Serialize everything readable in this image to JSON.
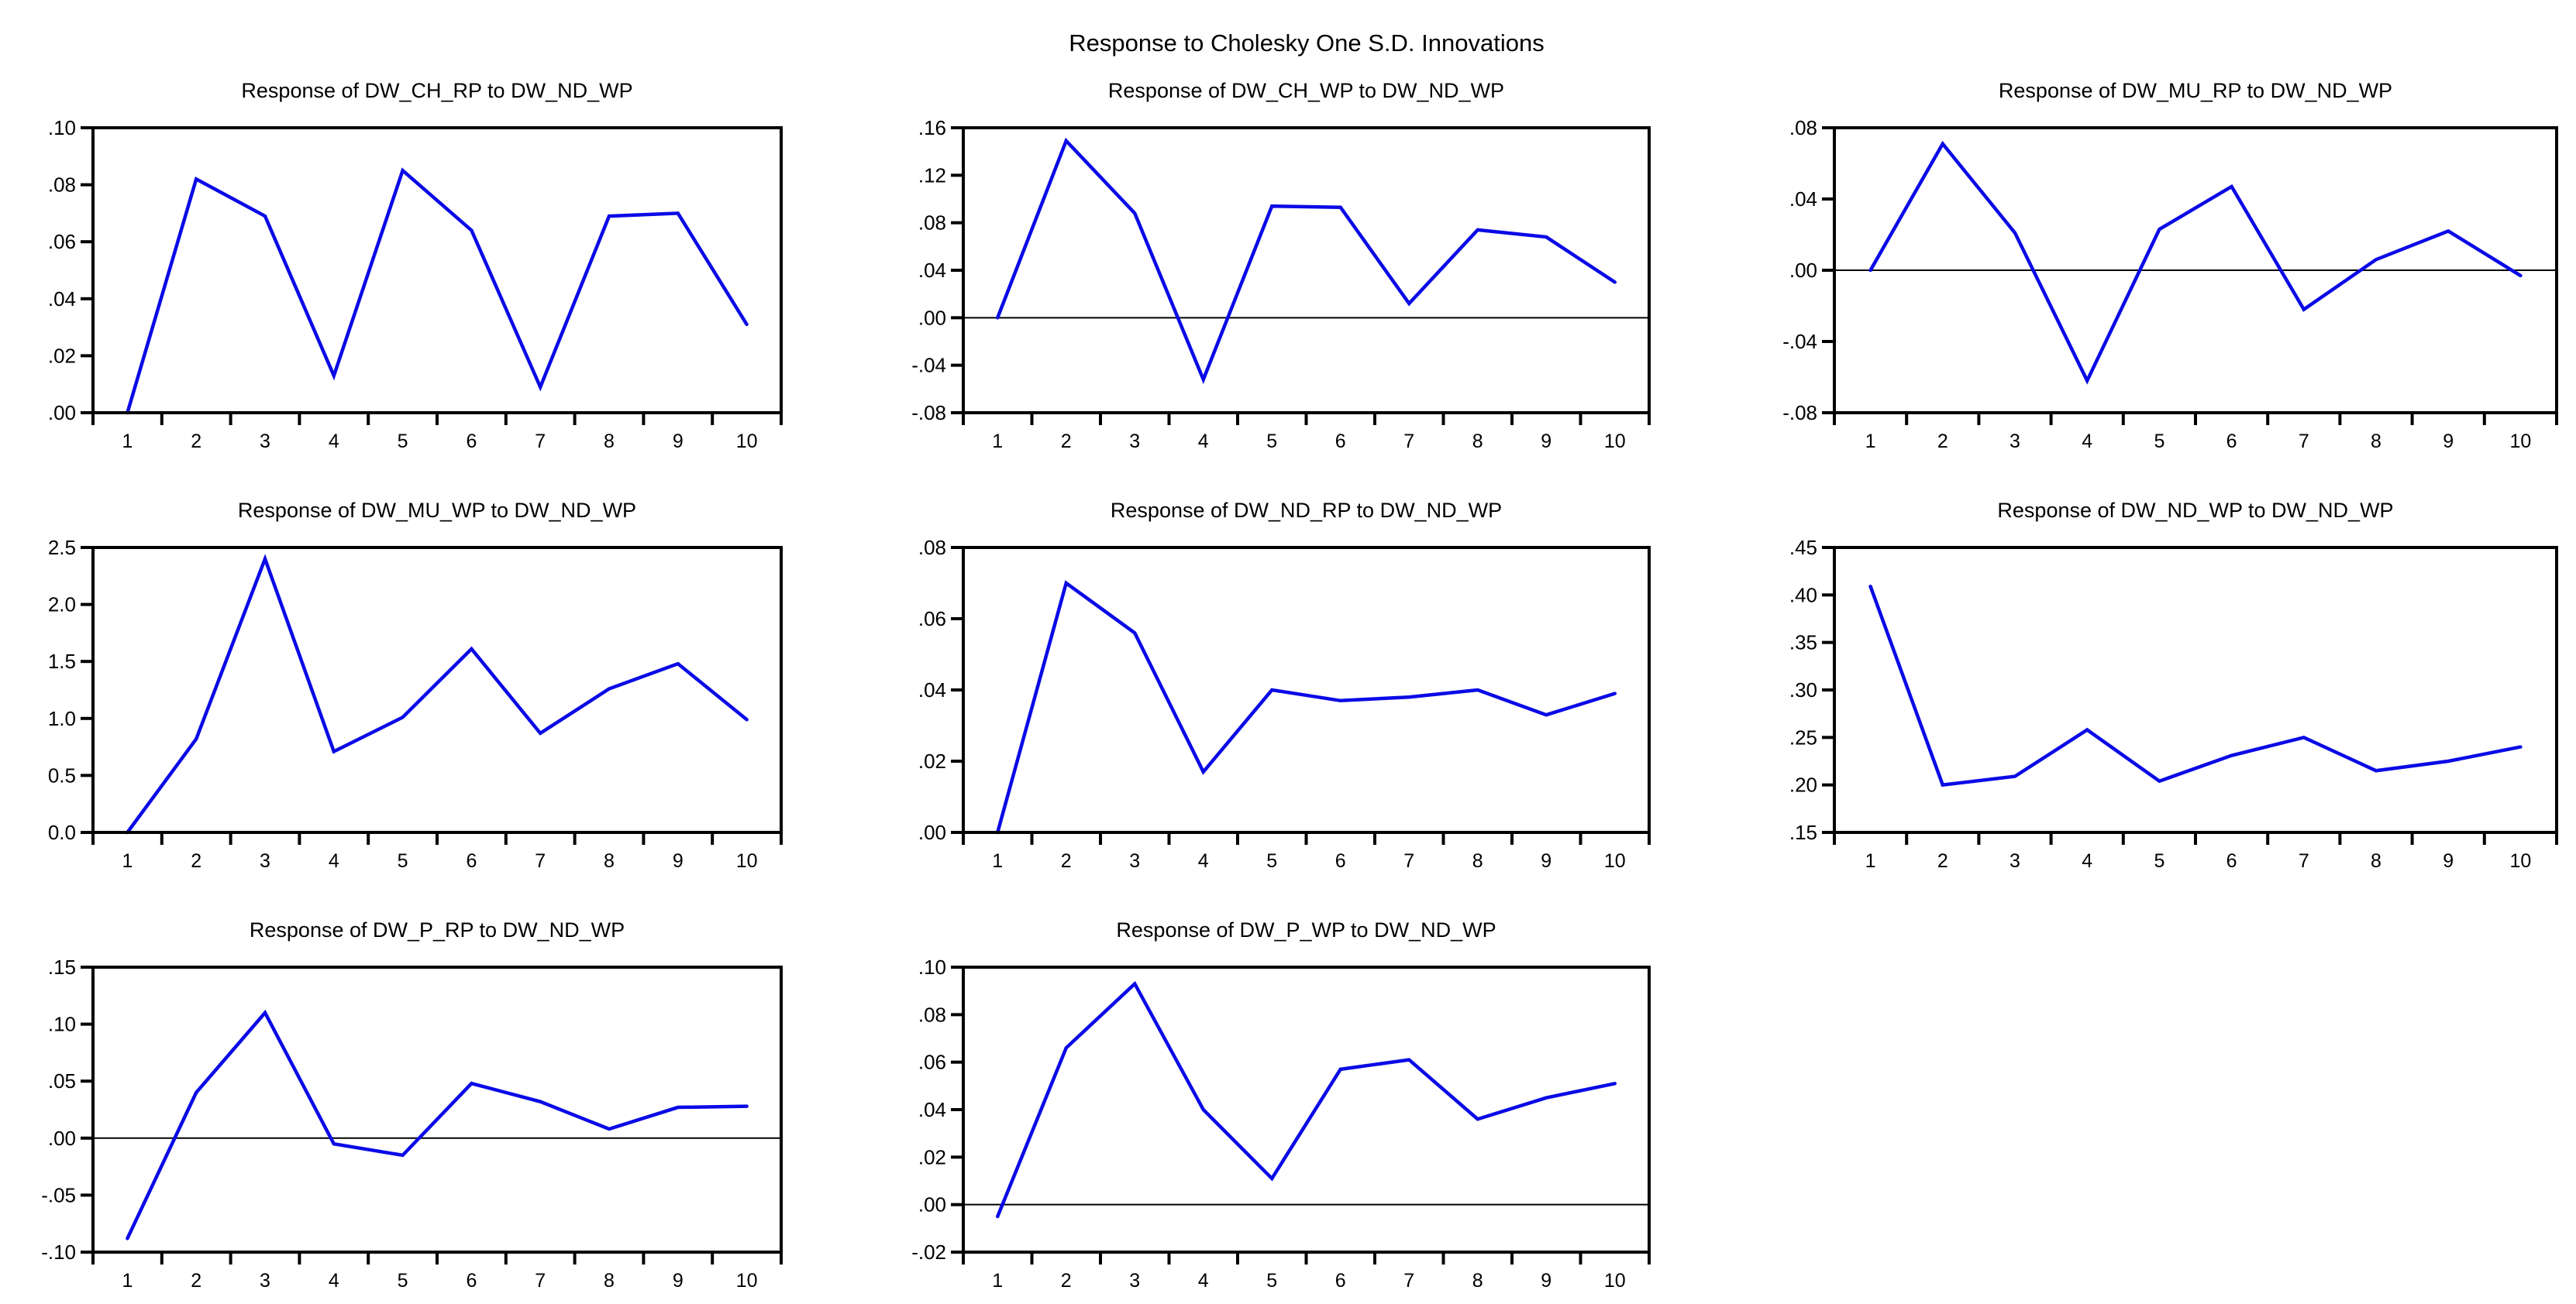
{
  "main_title": "Response to Cholesky One S.D. Innovations",
  "colors": {
    "line": "#0a0ae6",
    "axis": "#000000",
    "background": "#ffffff"
  },
  "chart_data": {
    "type": "line",
    "x_categories": [
      "1",
      "2",
      "3",
      "4",
      "5",
      "6",
      "7",
      "8",
      "9",
      "10"
    ],
    "legend": "none",
    "grid": "off",
    "charts": [
      {
        "title": "Response of DW_CH_RP to DW_ND_WP",
        "ylim": [
          0.0,
          0.1
        ],
        "zero_line": false,
        "yticks": [
          {
            "label": ".00",
            "value": 0.0
          },
          {
            "label": ".02",
            "value": 0.02
          },
          {
            "label": ".04",
            "value": 0.04
          },
          {
            "label": ".06",
            "value": 0.06
          },
          {
            "label": ".08",
            "value": 0.08
          },
          {
            "label": ".10",
            "value": 0.1
          }
        ],
        "values": [
          0.0,
          0.082,
          0.069,
          0.013,
          0.085,
          0.064,
          0.009,
          0.069,
          0.07,
          0.031
        ]
      },
      {
        "title": "Response of DW_CH_WP to DW_ND_WP",
        "ylim": [
          -0.08,
          0.16
        ],
        "zero_line": true,
        "yticks": [
          {
            "label": "-.08",
            "value": -0.08
          },
          {
            "label": "-.04",
            "value": -0.04
          },
          {
            "label": ".00",
            "value": 0.0
          },
          {
            "label": ".04",
            "value": 0.04
          },
          {
            "label": ".08",
            "value": 0.08
          },
          {
            "label": ".12",
            "value": 0.12
          },
          {
            "label": ".16",
            "value": 0.16
          }
        ],
        "values": [
          0.0,
          0.149,
          0.088,
          -0.052,
          0.094,
          0.093,
          0.012,
          0.074,
          0.068,
          0.03
        ]
      },
      {
        "title": "Response of DW_MU_RP to DW_ND_WP",
        "ylim": [
          -0.08,
          0.08
        ],
        "zero_line": true,
        "yticks": [
          {
            "label": "-.08",
            "value": -0.08
          },
          {
            "label": "-.04",
            "value": -0.04
          },
          {
            "label": ".00",
            "value": 0.0
          },
          {
            "label": ".04",
            "value": 0.04
          },
          {
            "label": ".08",
            "value": 0.08
          }
        ],
        "values": [
          0.0,
          0.071,
          0.021,
          -0.062,
          0.023,
          0.047,
          -0.022,
          0.006,
          0.022,
          -0.003
        ]
      },
      {
        "title": "Response of DW_MU_WP to DW_ND_WP",
        "ylim": [
          0.0,
          2.5
        ],
        "zero_line": false,
        "yticks": [
          {
            "label": "0.0",
            "value": 0.0
          },
          {
            "label": "0.5",
            "value": 0.5
          },
          {
            "label": "1.0",
            "value": 1.0
          },
          {
            "label": "1.5",
            "value": 1.5
          },
          {
            "label": "2.0",
            "value": 2.0
          },
          {
            "label": "2.5",
            "value": 2.5
          }
        ],
        "values": [
          0.0,
          0.82,
          2.4,
          0.71,
          1.01,
          1.61,
          0.87,
          1.26,
          1.48,
          0.99
        ]
      },
      {
        "title": "Response of DW_ND_RP to DW_ND_WP",
        "ylim": [
          0.0,
          0.08
        ],
        "zero_line": false,
        "yticks": [
          {
            "label": ".00",
            "value": 0.0
          },
          {
            "label": ".02",
            "value": 0.02
          },
          {
            "label": ".04",
            "value": 0.04
          },
          {
            "label": ".06",
            "value": 0.06
          },
          {
            "label": ".08",
            "value": 0.08
          }
        ],
        "values": [
          0.0,
          0.07,
          0.056,
          0.017,
          0.04,
          0.037,
          0.038,
          0.04,
          0.033,
          0.039
        ]
      },
      {
        "title": "Response of DW_ND_WP to DW_ND_WP",
        "ylim": [
          0.15,
          0.45
        ],
        "zero_line": false,
        "yticks": [
          {
            "label": ".15",
            "value": 0.15
          },
          {
            "label": ".20",
            "value": 0.2
          },
          {
            "label": ".25",
            "value": 0.25
          },
          {
            "label": ".30",
            "value": 0.3
          },
          {
            "label": ".35",
            "value": 0.35
          },
          {
            "label": ".40",
            "value": 0.4
          },
          {
            "label": ".45",
            "value": 0.45
          }
        ],
        "values": [
          0.409,
          0.2,
          0.209,
          0.258,
          0.204,
          0.231,
          0.25,
          0.215,
          0.225,
          0.24
        ]
      },
      {
        "title": "Response of DW_P_RP to DW_ND_WP",
        "ylim": [
          -0.1,
          0.15
        ],
        "zero_line": true,
        "yticks": [
          {
            "label": "-.10",
            "value": -0.1
          },
          {
            "label": "-.05",
            "value": -0.05
          },
          {
            "label": ".00",
            "value": 0.0
          },
          {
            "label": ".05",
            "value": 0.05
          },
          {
            "label": ".10",
            "value": 0.1
          },
          {
            "label": ".15",
            "value": 0.15
          }
        ],
        "values": [
          -0.088,
          0.04,
          0.11,
          -0.005,
          -0.015,
          0.048,
          0.032,
          0.008,
          0.027,
          0.028
        ]
      },
      {
        "title": "Response of DW_P_WP to DW_ND_WP",
        "ylim": [
          -0.02,
          0.1
        ],
        "zero_line": true,
        "yticks": [
          {
            "label": "-.02",
            "value": -0.02
          },
          {
            "label": ".00",
            "value": 0.0
          },
          {
            "label": ".02",
            "value": 0.02
          },
          {
            "label": ".04",
            "value": 0.04
          },
          {
            "label": ".06",
            "value": 0.06
          },
          {
            "label": ".08",
            "value": 0.08
          },
          {
            "label": ".10",
            "value": 0.1
          }
        ],
        "values": [
          -0.005,
          0.066,
          0.093,
          0.04,
          0.011,
          0.057,
          0.061,
          0.036,
          0.045,
          0.051
        ]
      }
    ]
  }
}
